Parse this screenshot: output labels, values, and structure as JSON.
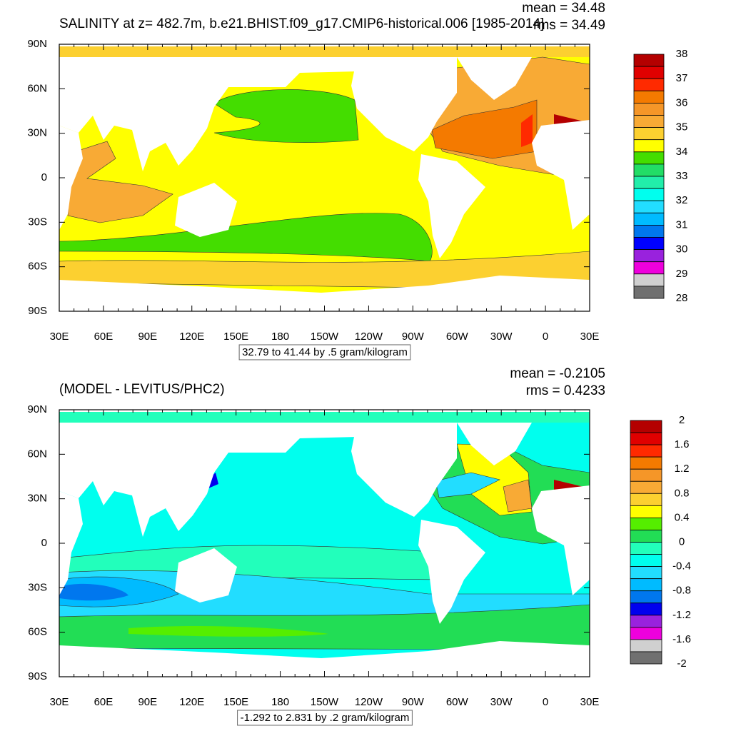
{
  "lat_labels": [
    "90N",
    "60N",
    "30N",
    "0",
    "30S",
    "60S",
    "90S"
  ],
  "lon_labels": [
    "30E",
    "60E",
    "90E",
    "120E",
    "150E",
    "180",
    "150W",
    "120W",
    "90W",
    "60W",
    "30W",
    "0",
    "30E"
  ],
  "panels": [
    {
      "title": "SALINITY at z= 482.7m, b.e21.BHIST.f09_g17.CMIP6-historical.006 [1985-2014]",
      "mean": "mean = 34.48",
      "rms": "rms = 34.49",
      "range_note": "32.79 to 41.44 by .5 gram/kilogram",
      "colorbar": {
        "labels": [
          38,
          37,
          36,
          35,
          34,
          33,
          32,
          31,
          30,
          29,
          28
        ],
        "colors": [
          "#b40000",
          "#e00000",
          "#ff2a00",
          "#f47a00",
          "#f59628",
          "#f8aa35",
          "#fcd030",
          "#ffff00",
          "#44dd00",
          "#22dd66",
          "#22eeaa",
          "#00ffee",
          "#22ddff",
          "#00bbff",
          "#0077ee",
          "#0000ff",
          "#9922dd",
          "#ee00dd",
          "#d0d0d0",
          "#707070"
        ]
      }
    },
    {
      "title": "(MODEL - LEVITUS/PHC2)",
      "mean": "mean = -0.2105",
      "rms": "rms = 0.4233",
      "range_note": "-1.292 to 2.831 by .2 gram/kilogram",
      "colorbar": {
        "labels": [
          2,
          1.6,
          1.2,
          0.8,
          0.4,
          0,
          -0.4,
          -0.8,
          -1.2,
          -1.6,
          -2
        ],
        "colors": [
          "#b40000",
          "#e00000",
          "#ff2a00",
          "#f47a00",
          "#f59628",
          "#f8aa35",
          "#fcd030",
          "#ffff00",
          "#55ee00",
          "#22dd55",
          "#22ffbb",
          "#00ffee",
          "#22ddff",
          "#00bbff",
          "#0077ee",
          "#0000ee",
          "#9922dd",
          "#ee00dd",
          "#d0d0d0",
          "#707070"
        ]
      }
    }
  ]
}
